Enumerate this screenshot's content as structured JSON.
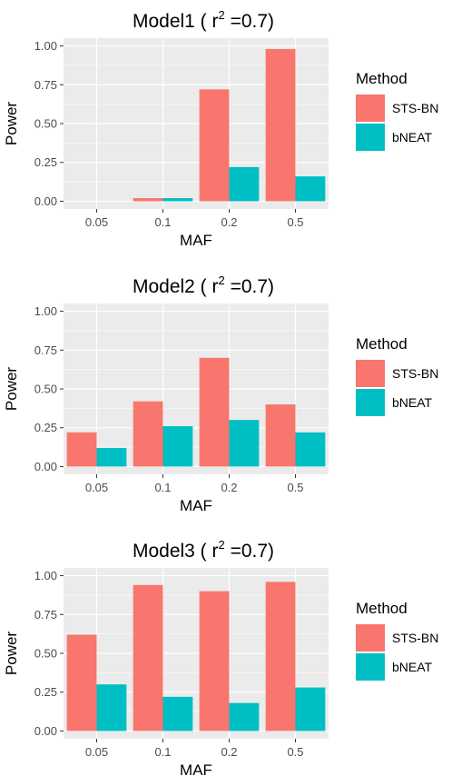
{
  "colors": {
    "STS-BN": "#F8766D",
    "bNEAT": "#00BFC4",
    "panel": "#EBEBEB",
    "grid": "#FFFFFF"
  },
  "chart_data": [
    {
      "type": "bar",
      "title_prefix": "Model1 ( r",
      "title_sup": "2",
      "title_suffix": " =0.7)",
      "xlabel": "MAF",
      "ylabel": "Power",
      "categories": [
        "0.05",
        "0.1",
        "0.2",
        "0.5"
      ],
      "yticks": [
        "0.00",
        "0.25",
        "0.50",
        "0.75",
        "1.00"
      ],
      "ylim": [
        0,
        1.0
      ],
      "grid": true,
      "legend_position": "right",
      "legend_title": "Method",
      "series": [
        {
          "name": "STS-BN",
          "values": [
            0.0,
            0.02,
            0.72,
            0.98
          ]
        },
        {
          "name": "bNEAT",
          "values": [
            0.0,
            0.02,
            0.22,
            0.16
          ]
        }
      ]
    },
    {
      "type": "bar",
      "title_prefix": "Model2 ( r",
      "title_sup": "2",
      "title_suffix": " =0.7)",
      "xlabel": "MAF",
      "ylabel": "Power",
      "categories": [
        "0.05",
        "0.1",
        "0.2",
        "0.5"
      ],
      "yticks": [
        "0.00",
        "0.25",
        "0.50",
        "0.75",
        "1.00"
      ],
      "ylim": [
        0,
        1.0
      ],
      "grid": true,
      "legend_position": "right",
      "legend_title": "Method",
      "series": [
        {
          "name": "STS-BN",
          "values": [
            0.22,
            0.42,
            0.7,
            0.4
          ]
        },
        {
          "name": "bNEAT",
          "values": [
            0.12,
            0.26,
            0.3,
            0.22
          ]
        }
      ]
    },
    {
      "type": "bar",
      "title_prefix": "Model3 ( r",
      "title_sup": "2",
      "title_suffix": " =0.7)",
      "xlabel": "MAF",
      "ylabel": "Power",
      "categories": [
        "0.05",
        "0.1",
        "0.2",
        "0.5"
      ],
      "yticks": [
        "0.00",
        "0.25",
        "0.50",
        "0.75",
        "1.00"
      ],
      "ylim": [
        0,
        1.0
      ],
      "grid": true,
      "legend_position": "right",
      "legend_title": "Method",
      "series": [
        {
          "name": "STS-BN",
          "values": [
            0.62,
            0.94,
            0.9,
            0.96
          ]
        },
        {
          "name": "bNEAT",
          "values": [
            0.3,
            0.22,
            0.18,
            0.28
          ]
        }
      ]
    }
  ]
}
